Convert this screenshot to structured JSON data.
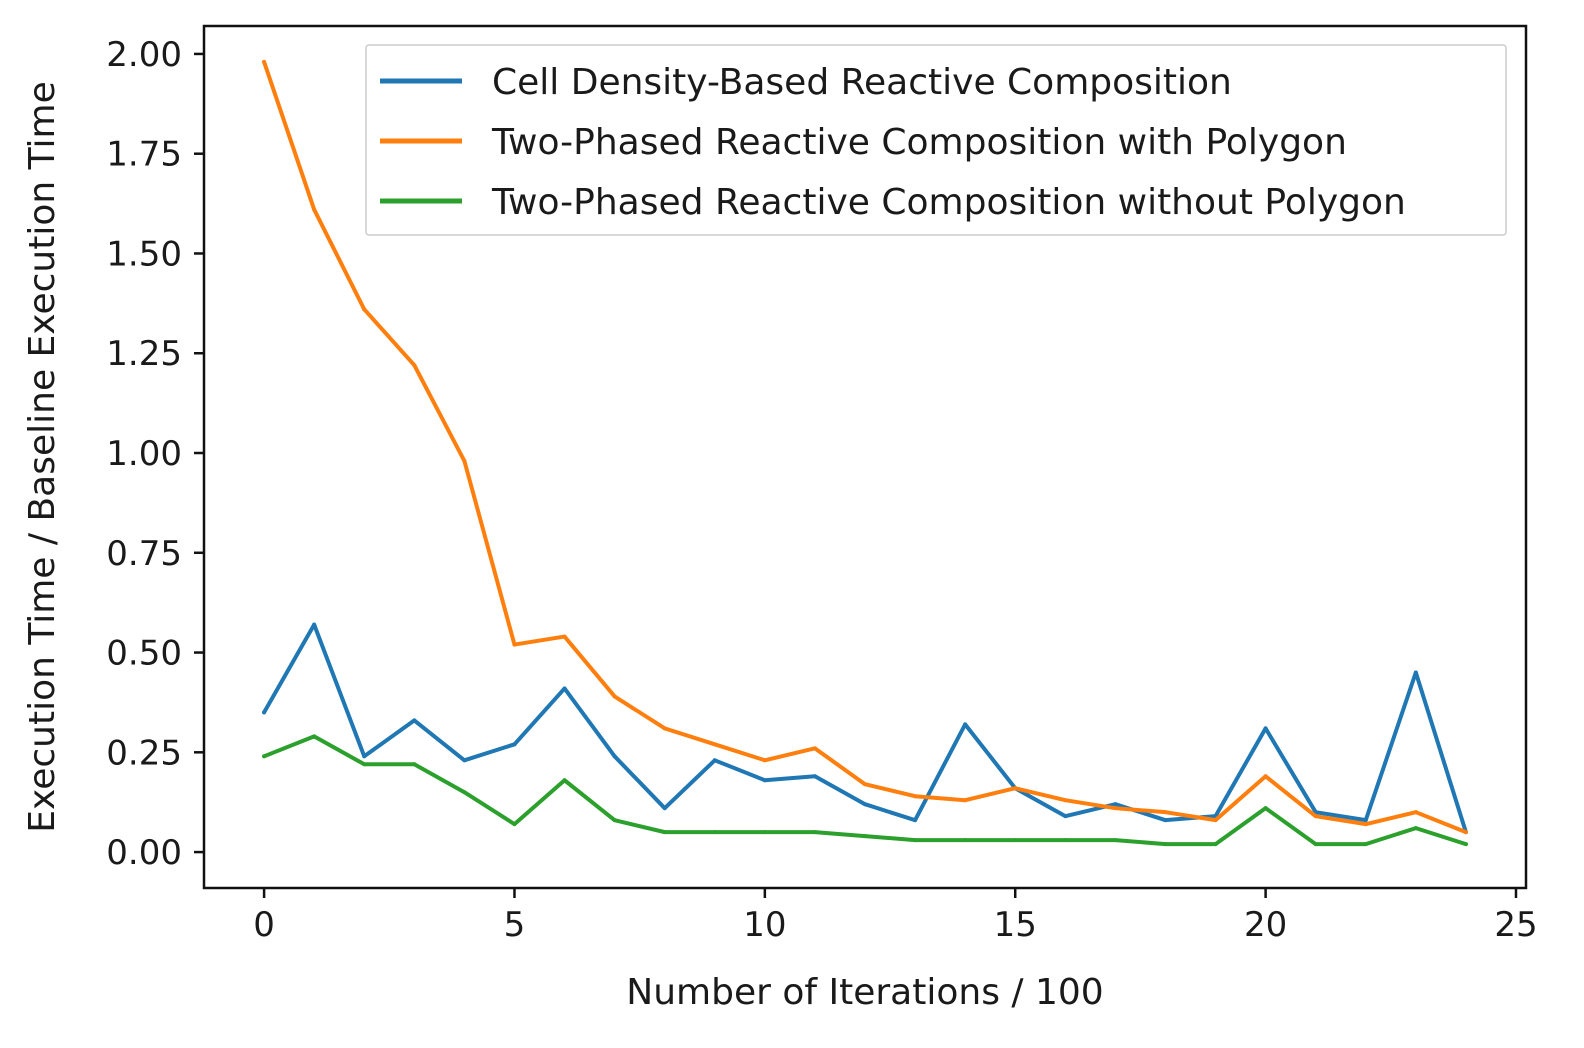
{
  "chart_data": {
    "type": "line",
    "title": "",
    "xlabel": "Number of Iterations / 100",
    "ylabel": "Execution Time / Baseline Execution Time",
    "xlim": [
      -1.2,
      25.2
    ],
    "ylim": [
      -0.09,
      2.07
    ],
    "xticks": [
      0,
      5,
      10,
      15,
      20,
      25
    ],
    "xtick_labels": [
      "0",
      "5",
      "10",
      "15",
      "20",
      "25"
    ],
    "yticks": [
      0.0,
      0.25,
      0.5,
      0.75,
      1.0,
      1.25,
      1.5,
      1.75,
      2.0
    ],
    "ytick_labels": [
      "0.00",
      "0.25",
      "0.50",
      "0.75",
      "1.00",
      "1.25",
      "1.50",
      "1.75",
      "2.00"
    ],
    "grid": false,
    "legend_position": "top-right",
    "x": [
      0,
      1,
      2,
      3,
      4,
      5,
      6,
      7,
      8,
      9,
      10,
      11,
      12,
      13,
      14,
      15,
      16,
      17,
      18,
      19,
      20,
      21,
      22,
      23,
      24
    ],
    "series": [
      {
        "name": "Cell Density-Based Reactive Composition",
        "color": "#1f77b4",
        "values": [
          0.35,
          0.57,
          0.24,
          0.33,
          0.23,
          0.27,
          0.41,
          0.24,
          0.11,
          0.23,
          0.18,
          0.19,
          0.12,
          0.08,
          0.32,
          0.16,
          0.09,
          0.12,
          0.08,
          0.09,
          0.31,
          0.1,
          0.08,
          0.45,
          0.05
        ]
      },
      {
        "name": "Two-Phased Reactive Composition with Polygon",
        "color": "#ff7f0e",
        "values": [
          1.98,
          1.61,
          1.36,
          1.22,
          0.98,
          0.52,
          0.54,
          0.39,
          0.31,
          0.27,
          0.23,
          0.26,
          0.17,
          0.14,
          0.13,
          0.16,
          0.13,
          0.11,
          0.1,
          0.08,
          0.19,
          0.09,
          0.07,
          0.1,
          0.05
        ]
      },
      {
        "name": "Two-Phased Reactive Composition without Polygon",
        "color": "#2ca02c",
        "values": [
          0.24,
          0.29,
          0.22,
          0.22,
          0.15,
          0.07,
          0.18,
          0.08,
          0.05,
          0.05,
          0.05,
          0.05,
          0.04,
          0.03,
          0.03,
          0.03,
          0.03,
          0.03,
          0.02,
          0.02,
          0.11,
          0.02,
          0.02,
          0.06,
          0.02
        ]
      }
    ]
  }
}
